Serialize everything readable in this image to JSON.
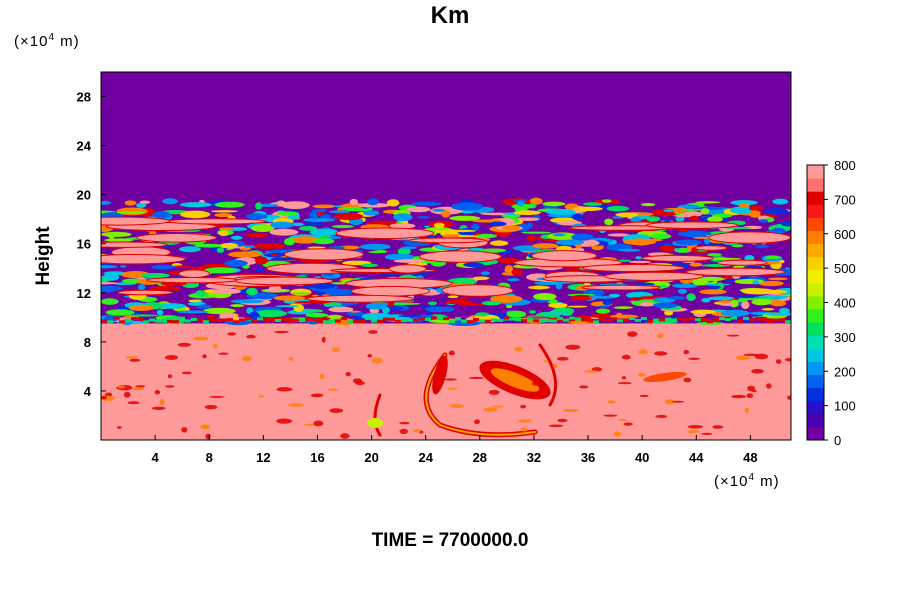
{
  "chart_data": {
    "type": "heatmap",
    "title": "Km",
    "xlabel": "",
    "x_unit": {
      "prefix": "(×10",
      "exp": "4",
      "suffix": " m)"
    },
    "ylabel": "Height",
    "y_unit": {
      "prefix": "(×10",
      "exp": "4",
      "suffix": " m)"
    },
    "xlim": [
      0,
      51
    ],
    "ylim": [
      0,
      30
    ],
    "x_ticks": [
      "4",
      "8",
      "12",
      "16",
      "20",
      "24",
      "28",
      "32",
      "36",
      "40",
      "44",
      "48"
    ],
    "y_ticks": [
      "4",
      "8",
      "12",
      "16",
      "20",
      "24",
      "28"
    ],
    "colorbar": {
      "min": 0,
      "max": 800,
      "ticks": [
        "0",
        "100",
        "200",
        "300",
        "400",
        "500",
        "600",
        "700",
        "800"
      ],
      "colors": [
        "#7000a0",
        "#4a00b0",
        "#2a10c8",
        "#0030e0",
        "#0060f0",
        "#0098f0",
        "#00c8e0",
        "#00e0b0",
        "#00e060",
        "#30f020",
        "#80f000",
        "#c8f000",
        "#f0f000",
        "#f8d000",
        "#ffa800",
        "#ff8000",
        "#ff4800",
        "#f81818",
        "#e00000",
        "#ff7070",
        "#ff9a9a"
      ]
    },
    "field_description_regions": {
      "upper_uniform_value": 0,
      "lower_uniform_value": 800,
      "turbulent_band_y_range": [
        9.5,
        19.5
      ]
    },
    "footer": "TIME = 7700000.0"
  }
}
